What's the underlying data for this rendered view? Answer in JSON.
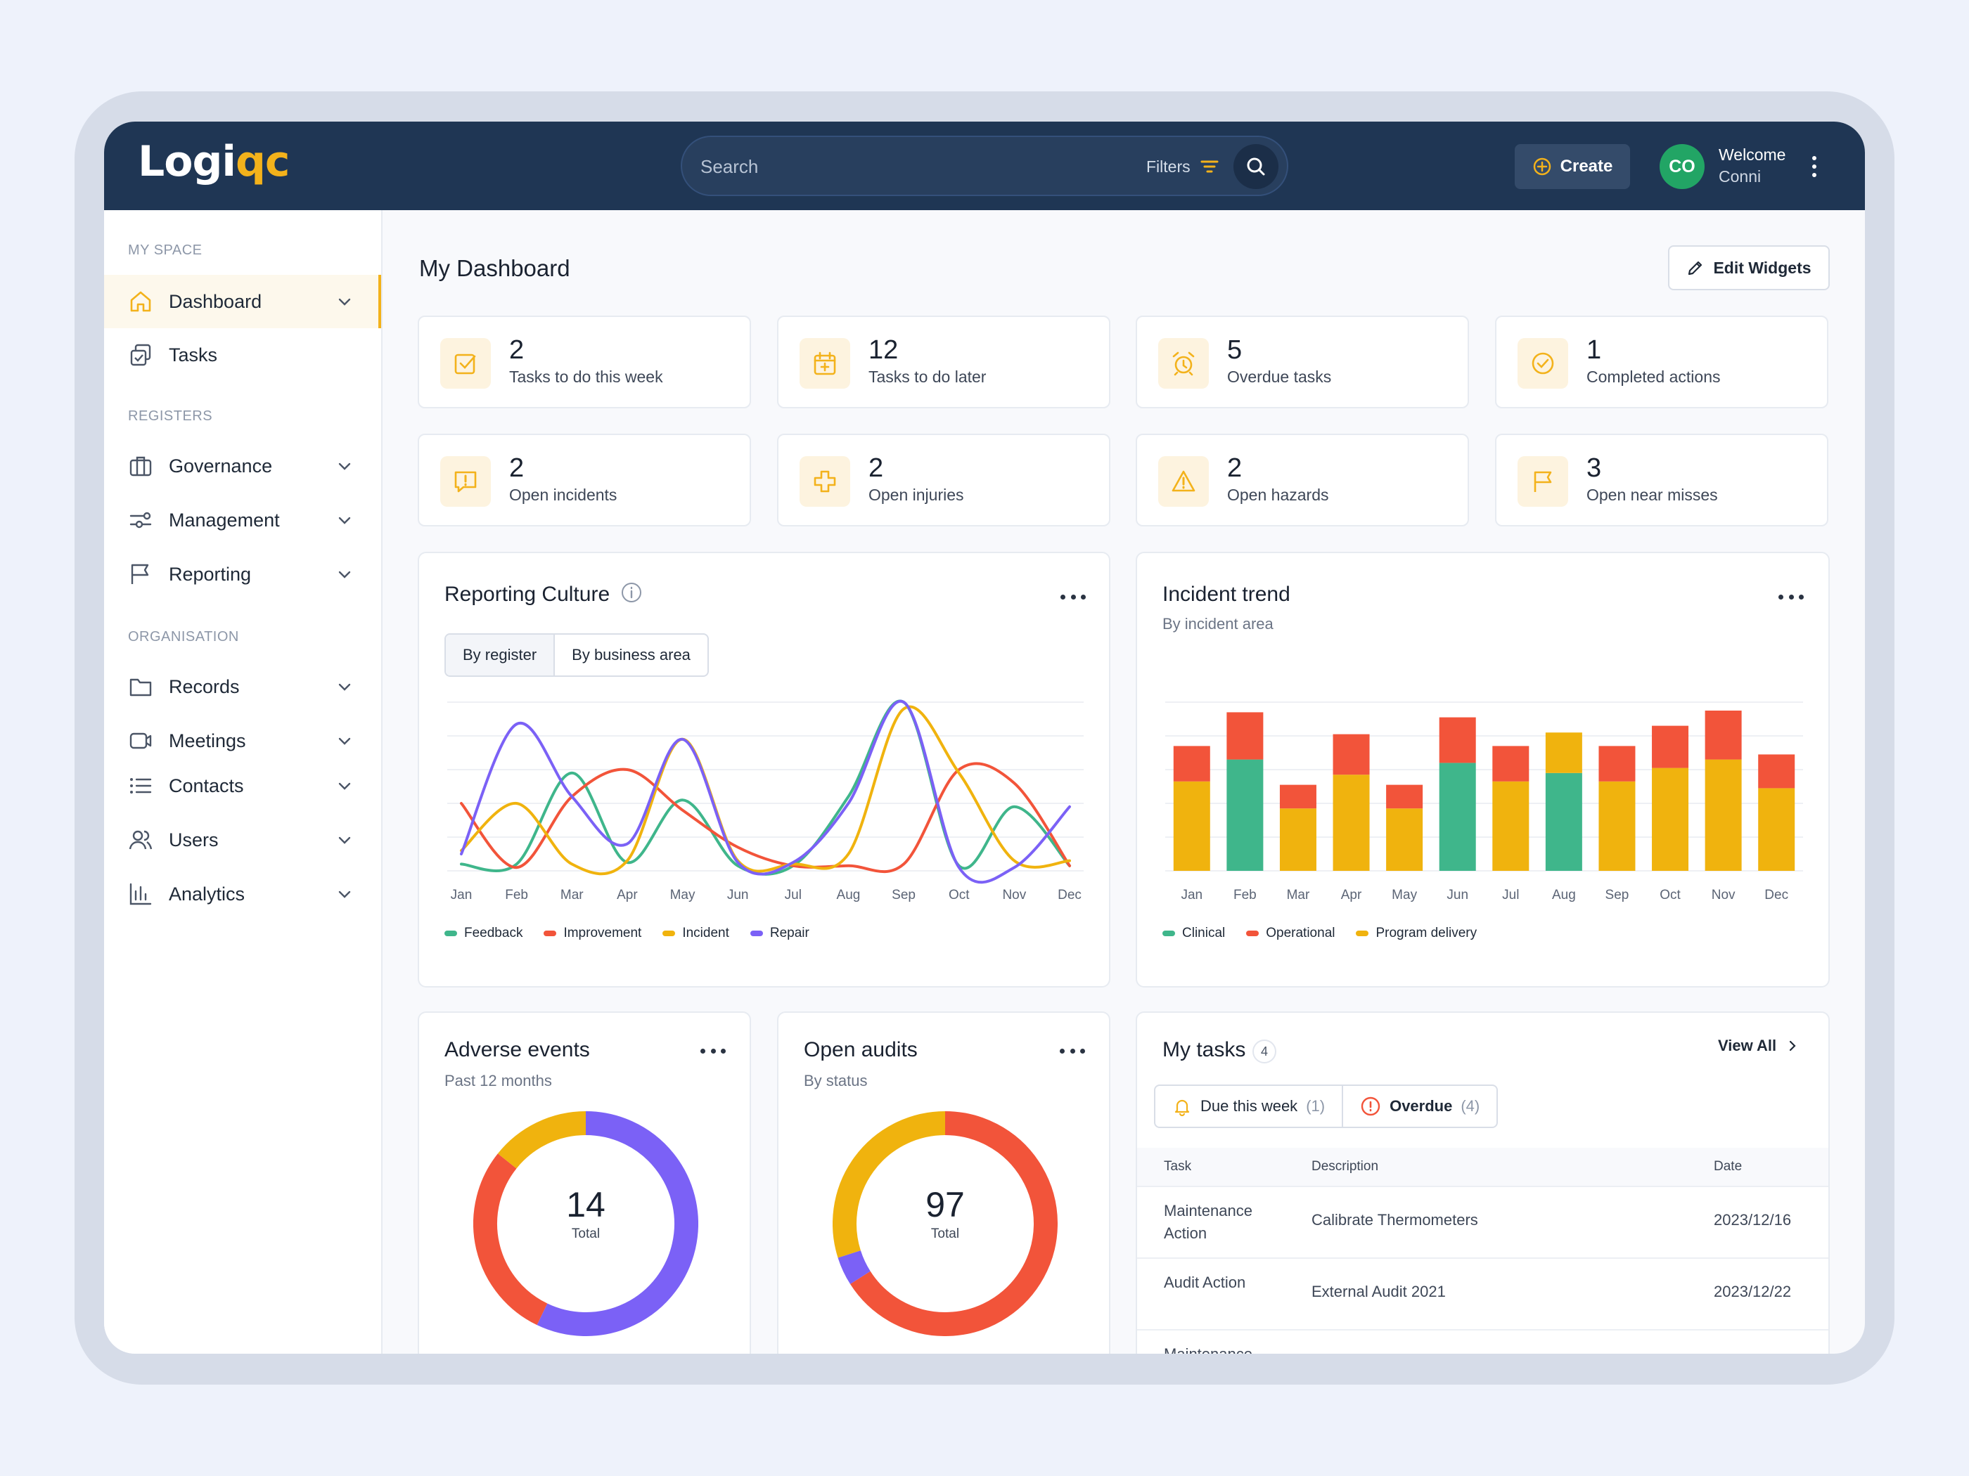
{
  "app": {
    "logo_part1": "Logi",
    "logo_part2": "qc",
    "search_placeholder": "Search",
    "filters_label": "Filters",
    "create_label": "Create",
    "avatar_initials": "CO",
    "welcome_label": "Welcome",
    "user_name": "Conni"
  },
  "sidebar": {
    "sections": {
      "my_space": "MY SPACE",
      "registers": "REGISTERS",
      "organisation": "ORGANISATION"
    },
    "items": [
      {
        "label": "Dashboard",
        "icon": "home-icon",
        "active": true
      },
      {
        "label": "Tasks",
        "icon": "tasks-icon"
      },
      {
        "label": "Governance",
        "icon": "briefcase-icon"
      },
      {
        "label": "Management",
        "icon": "sliders-icon"
      },
      {
        "label": "Reporting",
        "icon": "flag-icon"
      },
      {
        "label": "Records",
        "icon": "folder-icon"
      },
      {
        "label": "Meetings",
        "icon": "video-icon"
      },
      {
        "label": "Contacts",
        "icon": "list-icon"
      },
      {
        "label": "Users",
        "icon": "users-icon"
      },
      {
        "label": "Analytics",
        "icon": "bar-chart-icon"
      }
    ]
  },
  "dashboard": {
    "title": "My Dashboard",
    "edit_widgets_label": "Edit Widgets",
    "accent_color": "#f3b21b",
    "kpis": [
      {
        "value": "2",
        "label": "Tasks to do this week",
        "icon": "check-square-icon"
      },
      {
        "value": "12",
        "label": "Tasks to do later",
        "icon": "calendar-icon"
      },
      {
        "value": "5",
        "label": "Overdue tasks",
        "icon": "alarm-icon"
      },
      {
        "value": "1",
        "label": "Completed actions",
        "icon": "check-circle-icon"
      },
      {
        "value": "2",
        "label": "Open incidents",
        "icon": "alert-message-icon"
      },
      {
        "value": "2",
        "label": "Open injuries",
        "icon": "medical-cross-icon"
      },
      {
        "value": "2",
        "label": "Open hazards",
        "icon": "warning-triangle-icon"
      },
      {
        "value": "3",
        "label": "Open near misses",
        "icon": "flag-icon"
      }
    ]
  },
  "reporting_culture": {
    "title": "Reporting Culture",
    "tabs": [
      "By register",
      "By business area"
    ]
  },
  "incident_trend": {
    "title": "Incident trend",
    "subtitle": "By incident area"
  },
  "adverse_events": {
    "title": "Adverse events",
    "subtitle": "Past 12 months",
    "total": "14",
    "total_label": "Total"
  },
  "open_audits": {
    "title": "Open audits",
    "subtitle": "By status",
    "total": "97",
    "total_label": "Total"
  },
  "my_tasks": {
    "title": "My tasks",
    "count": "4",
    "view_all": "View All",
    "tabs": [
      {
        "label": "Due this week",
        "count": "(1)"
      },
      {
        "label": "Overdue",
        "count": "(4)"
      }
    ],
    "columns": [
      "Task",
      "Description",
      "Date"
    ],
    "rows": [
      {
        "task": "Maintenance Action",
        "description": "Calibrate Thermometers",
        "date": "2023/12/16"
      },
      {
        "task": "Audit Action",
        "description": "External Audit 2021",
        "date": "2023/12/22"
      },
      {
        "task": "Maintenance",
        "description": "",
        "date": ""
      }
    ]
  },
  "chart_data": [
    {
      "type": "line",
      "title": "Reporting Culture",
      "categories": [
        "Jan",
        "Feb",
        "Mar",
        "Apr",
        "May",
        "Jun",
        "Jul",
        "Aug",
        "Sep",
        "Oct",
        "Nov",
        "Dec"
      ],
      "ylim": [
        0,
        100
      ],
      "grid": true,
      "legend_position": "bottom",
      "series": [
        {
          "name": "Feedback",
          "color": "#3fb68b",
          "values": [
            4,
            4,
            58,
            5,
            42,
            3,
            3,
            44,
            100,
            3,
            38,
            3
          ]
        },
        {
          "name": "Improvement",
          "color": "#f2543a",
          "values": [
            40,
            2,
            44,
            60,
            36,
            14,
            3,
            3,
            4,
            60,
            52,
            3
          ]
        },
        {
          "name": "Incident",
          "color": "#f0b30e",
          "values": [
            12,
            40,
            4,
            6,
            78,
            6,
            4,
            10,
            96,
            58,
            6,
            6
          ]
        },
        {
          "name": "Repair",
          "color": "#7b61f6",
          "values": [
            10,
            87,
            44,
            16,
            78,
            5,
            5,
            40,
            100,
            2,
            2,
            38
          ]
        }
      ]
    },
    {
      "type": "bar",
      "title": "Incident trend",
      "categories": [
        "Jan",
        "Feb",
        "Mar",
        "Apr",
        "May",
        "Jun",
        "Jul",
        "Aug",
        "Sep",
        "Oct",
        "Nov",
        "Dec"
      ],
      "stacked": true,
      "ylim": [
        0,
        100
      ],
      "grid": true,
      "legend_position": "bottom",
      "series": [
        {
          "name": "Clinical",
          "color": "#3fb68b",
          "values": [
            0,
            66,
            0,
            0,
            0,
            64,
            0,
            58,
            0,
            0,
            0,
            0
          ]
        },
        {
          "name": "Program delivery",
          "color": "#f0b30e",
          "values": [
            53,
            0,
            37,
            57,
            37,
            0,
            53,
            24,
            53,
            61,
            66,
            49
          ]
        },
        {
          "name": "Operational",
          "color": "#f2543a",
          "values": [
            21,
            28,
            14,
            24,
            14,
            27,
            21,
            0,
            21,
            25,
            29,
            20
          ]
        }
      ],
      "legend_order": [
        "Clinical",
        "Operational",
        "Program delivery"
      ]
    },
    {
      "type": "pie",
      "title": "Adverse events",
      "total": 14,
      "series": [
        {
          "name": "purple",
          "color": "#7b61f6",
          "value": 8
        },
        {
          "name": "red",
          "color": "#f2543a",
          "value": 4
        },
        {
          "name": "yellow",
          "color": "#f0b30e",
          "value": 2
        }
      ]
    },
    {
      "type": "pie",
      "title": "Open audits",
      "total": 97,
      "series": [
        {
          "name": "red",
          "color": "#f2543a",
          "value": 64
        },
        {
          "name": "purple",
          "color": "#7b61f6",
          "value": 4
        },
        {
          "name": "yellow",
          "color": "#f0b30e",
          "value": 29
        }
      ]
    }
  ]
}
